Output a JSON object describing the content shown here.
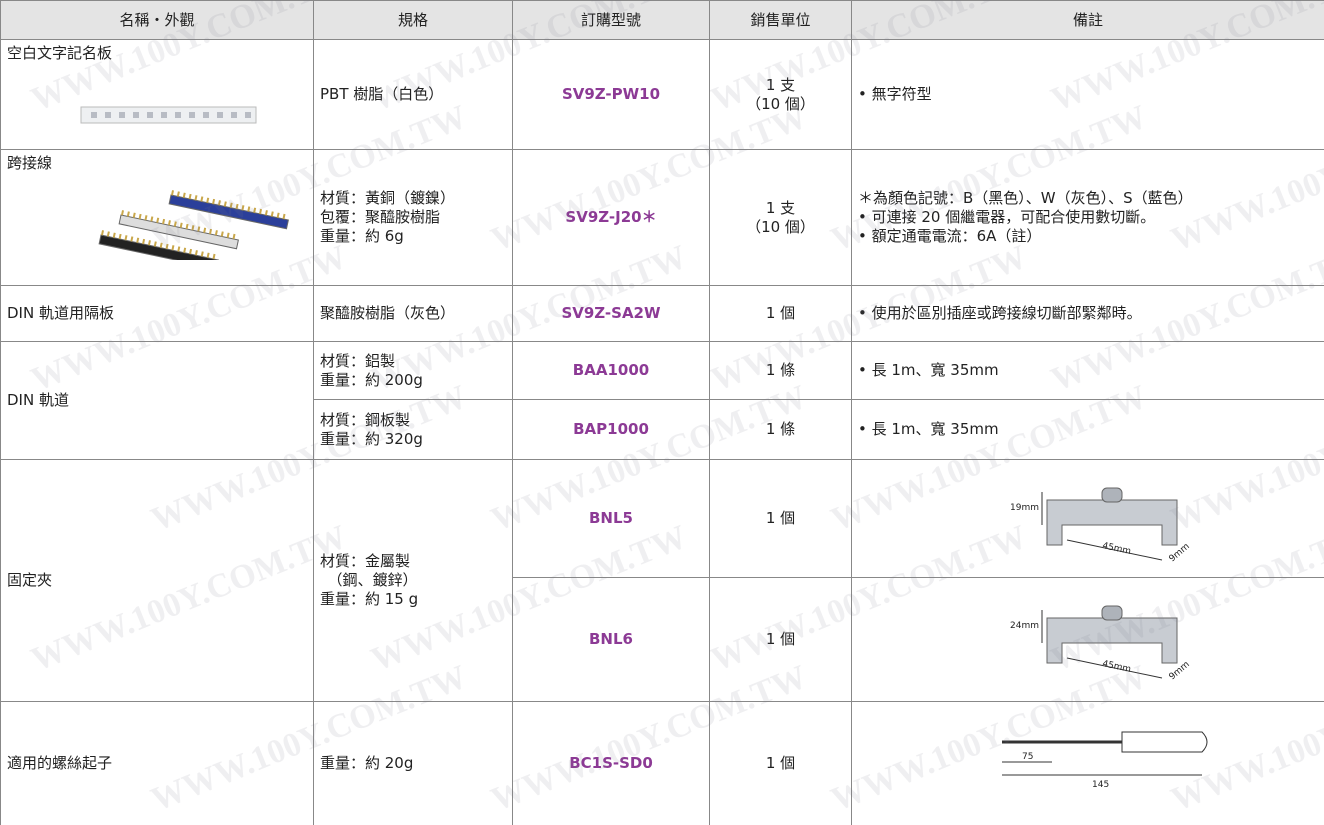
{
  "watermark": "WWW.100Y.COM.TW",
  "table": {
    "header": [
      "名稱・外觀",
      "規格",
      "訂購型號",
      "銷售單位",
      "備註"
    ],
    "rows": [
      {
        "name": "空白文字記名板",
        "spec": [
          "PBT 樹脂（白色）"
        ],
        "model": "SV9Z-PW10",
        "unit": [
          "1 支",
          "（10 個）"
        ],
        "notes": [
          "• 無字符型"
        ]
      },
      {
        "name": "跨接線",
        "spec": [
          "材質：黃銅（鍍鎳）",
          "包覆：聚醯胺樹脂",
          "重量：約 6g"
        ],
        "model": "SV9Z-J20＊",
        "unit": [
          "1 支",
          "（10 個）"
        ],
        "notes": [
          "＊為顏色記號：B（黑色）、W（灰色）、S（藍色）",
          "• 可連接 20 個繼電器，可配合使用數切斷。",
          "• 額定通電電流：6A（註）"
        ]
      },
      {
        "name": "DIN 軌道用隔板",
        "spec": [
          "聚醯胺樹脂（灰色）"
        ],
        "model": "SV9Z-SA2W",
        "unit": [
          "1 個"
        ],
        "notes": [
          "• 使用於區別插座或跨接線切斷部緊鄰時。"
        ]
      },
      {
        "name": "DIN 軌道",
        "variants": [
          {
            "spec": [
              "材質：鋁製",
              "重量：約 200g"
            ],
            "model": "BAA1000",
            "unit": [
              "1 條"
            ],
            "notes": [
              "• 長 1m、寬 35mm"
            ]
          },
          {
            "spec": [
              "材質：鋼板製",
              "重量：約 320g"
            ],
            "model": "BAP1000",
            "unit": [
              "1 條"
            ],
            "notes": [
              "• 長 1m、寬 35mm"
            ]
          }
        ]
      },
      {
        "name": "固定夾",
        "spec": [
          "材質：金屬製",
          "　（鋼、鍍鋅）",
          "重量：約 15 g"
        ],
        "variants": [
          {
            "model": "BNL5",
            "unit": [
              "1 個"
            ],
            "figure": [
              "19mm",
              "45mm",
              "9mm"
            ]
          },
          {
            "model": "BNL6",
            "unit": [
              "1 個"
            ],
            "figure": [
              "24mm",
              "45mm",
              "9mm"
            ]
          }
        ]
      },
      {
        "name": "適用的螺絲起子",
        "spec": [
          "重量：約 20g"
        ],
        "model": "BC1S-SD0",
        "unit": [
          "1 個"
        ],
        "figure": [
          "75",
          "145"
        ]
      }
    ]
  }
}
